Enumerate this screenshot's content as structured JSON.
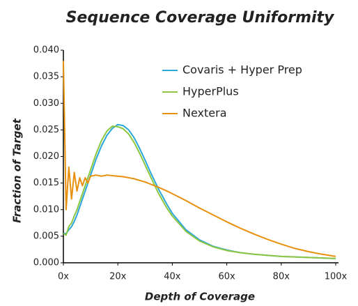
{
  "chart_data": {
    "type": "line",
    "title": "Sequence Coverage Uniformity",
    "xlabel": "Depth of Coverage",
    "ylabel": "Fraction of Target",
    "x": [
      0,
      1,
      2,
      3,
      4,
      5,
      6,
      7,
      8,
      9,
      10,
      12,
      14,
      16,
      18,
      20,
      22,
      24,
      26,
      28,
      30,
      32,
      35,
      38,
      40,
      45,
      50,
      55,
      60,
      65,
      70,
      75,
      80,
      85,
      90,
      95,
      100
    ],
    "series": [
      {
        "name": "Covaris + Hyper Prep",
        "color": "#2aa6d9",
        "values": [
          0.0055,
          0.0055,
          0.0062,
          0.0068,
          0.0078,
          0.009,
          0.0105,
          0.012,
          0.0135,
          0.015,
          0.0165,
          0.0195,
          0.022,
          0.024,
          0.0253,
          0.026,
          0.0258,
          0.025,
          0.0235,
          0.0215,
          0.0193,
          0.017,
          0.0138,
          0.011,
          0.0093,
          0.0062,
          0.0043,
          0.0031,
          0.0024,
          0.0019,
          0.0016,
          0.0014,
          0.0012,
          0.0011,
          0.001,
          0.0009,
          0.0008
        ]
      },
      {
        "name": "HyperPlus",
        "color": "#8dc63f",
        "values": [
          0.0055,
          0.0052,
          0.0068,
          0.0075,
          0.0088,
          0.01,
          0.0115,
          0.013,
          0.0145,
          0.016,
          0.0175,
          0.0205,
          0.023,
          0.0248,
          0.0257,
          0.0256,
          0.0252,
          0.0242,
          0.0226,
          0.0206,
          0.0184,
          0.0162,
          0.013,
          0.0103,
          0.0088,
          0.0059,
          0.0041,
          0.003,
          0.0023,
          0.0019,
          0.0016,
          0.0014,
          0.0012,
          0.0011,
          0.001,
          0.0009,
          0.0008
        ]
      },
      {
        "name": "Nextera",
        "color": "#e8900c",
        "values": [
          0.038,
          0.01,
          0.018,
          0.012,
          0.017,
          0.0135,
          0.016,
          0.0145,
          0.016,
          0.015,
          0.0163,
          0.0165,
          0.0163,
          0.0165,
          0.0164,
          0.0163,
          0.0162,
          0.016,
          0.0158,
          0.0155,
          0.0152,
          0.0148,
          0.0142,
          0.0135,
          0.013,
          0.0117,
          0.0103,
          0.009,
          0.0077,
          0.0065,
          0.0054,
          0.0044,
          0.0035,
          0.0027,
          0.0021,
          0.0016,
          0.0012
        ]
      }
    ],
    "xlim": [
      0,
      100
    ],
    "xticks": [
      {
        "value": 0,
        "label": "0x"
      },
      {
        "value": 20,
        "label": "20x"
      },
      {
        "value": 40,
        "label": "40x"
      },
      {
        "value": 60,
        "label": "60x"
      },
      {
        "value": 80,
        "label": "80x"
      },
      {
        "value": 100,
        "label": "100x"
      }
    ],
    "ylim": [
      0,
      0.04
    ],
    "yticks": [
      {
        "value": 0,
        "label": "0.000"
      },
      {
        "value": 0.005,
        "label": "0.005"
      },
      {
        "value": 0.01,
        "label": "0.010"
      },
      {
        "value": 0.015,
        "label": "0.015"
      },
      {
        "value": 0.02,
        "label": "0.020"
      },
      {
        "value": 0.025,
        "label": "0.025"
      },
      {
        "value": 0.03,
        "label": "0.030"
      },
      {
        "value": 0.035,
        "label": "0.035"
      },
      {
        "value": 0.04,
        "label": "0.040"
      }
    ],
    "legend": "top-right",
    "grid": false
  }
}
